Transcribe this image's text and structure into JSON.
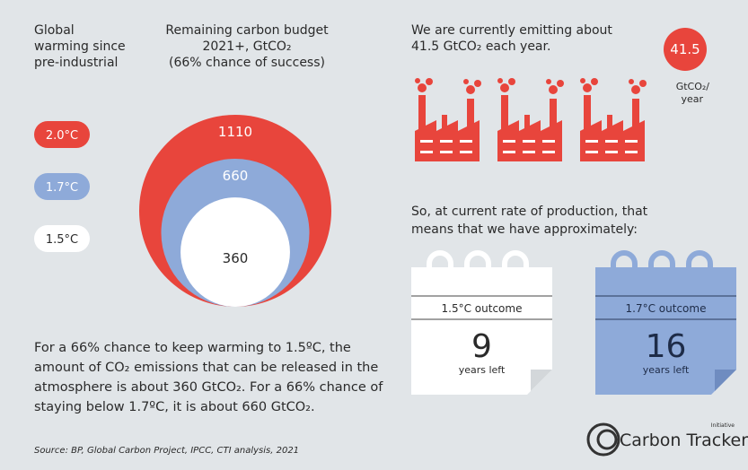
{
  "warming_header": [
    "Global",
    "warming since",
    "pre-industrial"
  ],
  "budget_header": [
    "Remaining carbon budget",
    "2021+, GtCO₂",
    "(66% chance of success)"
  ],
  "scenarios": [
    {
      "label": "2.0°C",
      "budget": 1110,
      "color": "#e8453c"
    },
    {
      "label": "1.7°C",
      "budget": 660,
      "color": "#8eaad9"
    },
    {
      "label": "1.5°C",
      "budget": 360,
      "color": "#ffffff"
    }
  ],
  "emissions": {
    "text": [
      "We are currently emitting about",
      "41.5 GtCO₂ each year."
    ],
    "rate": 41.5,
    "unit": [
      "GtCO₂/",
      "year"
    ]
  },
  "conclusion": [
    "So, at current rate of production, that",
    "means that we have approximately:"
  ],
  "outcomes": [
    {
      "label": "1.5°C outcome",
      "years": 9,
      "unit": "years left"
    },
    {
      "label": "1.7°C outcome",
      "years": 16,
      "unit": "years left"
    }
  ],
  "body": [
    "For a 66% chance to keep warming to 1.5ºC, the",
    "amount of CO₂ emissions that can be released in the",
    "atmosphere is about 360 GtCO₂. For a 66% chance of",
    "staying below 1.7ºC, it is about 660 GtCO₂."
  ],
  "source": "Source: BP, Global Carbon Project, IPCC, CTI analysis, 2021",
  "logo": {
    "name": "Carbon Tracker",
    "tag": "Initiative"
  }
}
